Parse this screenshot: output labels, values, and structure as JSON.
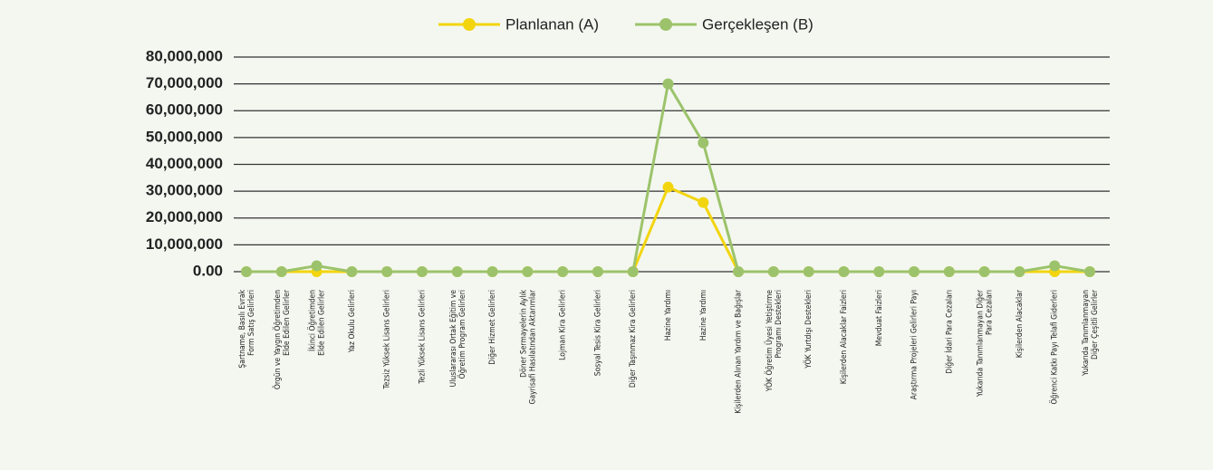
{
  "chart_data": {
    "type": "line",
    "categories": [
      "Şartname, Basılı Evrak\nForm Satış Gelirleri",
      "Örgün ve Yaygın Öğretimden\nElde Edilen Gelirler",
      "İkinci Öğretimden\nElde Edilen Gelirler",
      "Yaz Okulu Gelirleri",
      "Tezsiz Yüksek Lisans Gelirleri",
      "Tezli Yüksek Lisans Gelirleri",
      "Uluslararası Ortak Eğitim ve\nÖğretim Program Gelirleri",
      "Diğer Hizmet Gelirleri",
      "Döner Sermayelerin Aylık\nGayrisafi Hasılatından Aktarımlar",
      "Lojman Kira Gelirleri",
      "Sosyal Tesis Kira Gelirleri",
      "Diğer Taşınmaz Kira Gelirleri",
      "Hazine Yardımı",
      "Hazine Yardımı",
      "Kişilerden Alınan Yardım ve Bağışlar",
      "YÖK Öğretim Üyesi Yetiştirme\nProgramı Destekleri",
      "YÖK Yurtdışı Destekleri",
      "Kişilerden Alacaklar Faizleri",
      "Mevduat Faizleri",
      "Araştırma Projeleri Gelirleri Payı",
      "Diğer İdari Para Cezaları",
      "Yukarıda Tanımlanmayan Diğer\nPara Cezaları",
      "Kişilerden Alacaklar",
      "Öğrenci Katkı Payı Telafi Giderleri",
      "Yukarıda Tanımlanmayan\nDiğer Çeşitli Gelirler"
    ],
    "series": [
      {
        "name": "Planlanan (A)",
        "color": "#f2d50f",
        "values": [
          0,
          0,
          0,
          0,
          0,
          0,
          0,
          0,
          0,
          0,
          0,
          0,
          31500000,
          25800000,
          0,
          0,
          0,
          0,
          0,
          0,
          0,
          0,
          0,
          0,
          0
        ]
      },
      {
        "name": "Gerçekleşen (B)",
        "color": "#9cc36b",
        "values": [
          0,
          0,
          2200000,
          0,
          0,
          0,
          0,
          0,
          0,
          0,
          0,
          0,
          70000000,
          48000000,
          0,
          0,
          0,
          0,
          0,
          0,
          0,
          0,
          0,
          2200000,
          0
        ]
      }
    ],
    "ylim": [
      0,
      80000000
    ],
    "yticks": [
      {
        "value": 0,
        "label": "0.00"
      },
      {
        "value": 10000000,
        "label": "10,000,000"
      },
      {
        "value": 20000000,
        "label": "20,000,000"
      },
      {
        "value": 30000000,
        "label": "30,000,000"
      },
      {
        "value": 40000000,
        "label": "40,000,000"
      },
      {
        "value": 50000000,
        "label": "50,000,000"
      },
      {
        "value": 60000000,
        "label": "60,000,000"
      },
      {
        "value": 70000000,
        "label": "70,000,000"
      },
      {
        "value": 80000000,
        "label": "80,000,000"
      }
    ],
    "grid": true,
    "legend": "top"
  }
}
